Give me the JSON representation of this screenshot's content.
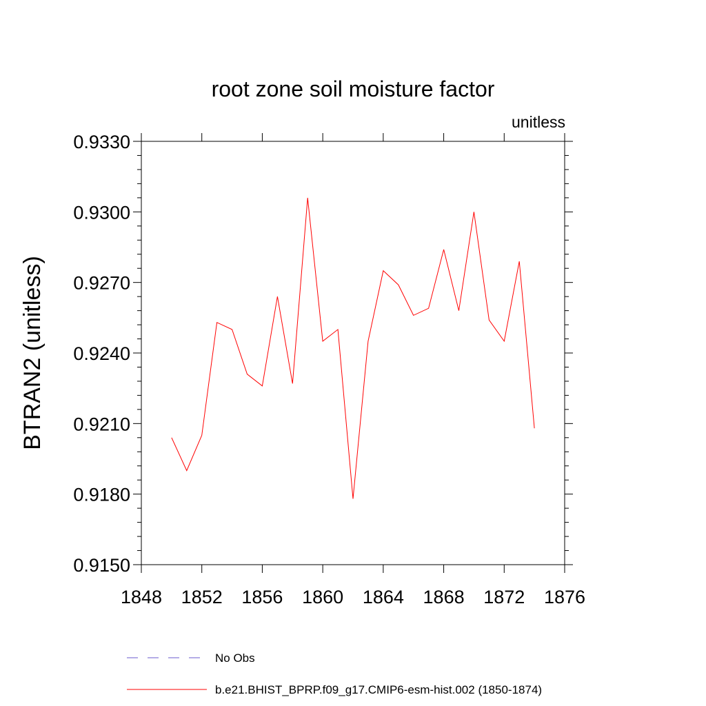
{
  "chart_data": {
    "type": "line",
    "title": "root zone soil moisture factor",
    "units_label": "unitless",
    "ylabel": "BTRAN2  (unitless)",
    "xlabel": "",
    "xlim": [
      1848,
      1876
    ],
    "ylim": [
      0.915,
      0.933
    ],
    "xticks": [
      1848,
      1852,
      1856,
      1860,
      1864,
      1868,
      1872,
      1876
    ],
    "xtick_labels": [
      "1848",
      "1852",
      "1856",
      "1860",
      "1864",
      "1868",
      "1872",
      "1876"
    ],
    "yticks": [
      0.915,
      0.918,
      0.921,
      0.924,
      0.927,
      0.93,
      0.933
    ],
    "ytick_labels": [
      "0.9150",
      "0.9180",
      "0.9210",
      "0.9240",
      "0.9270",
      "0.9300",
      "0.9330"
    ],
    "grid": false,
    "legend_position": "bottom",
    "series": [
      {
        "name": "b.e21.BHIST_BPRP.f09_g17.CMIP6-esm-hist.002 (1850-1874)",
        "color": "#ff0000",
        "style": "solid",
        "x": [
          1850,
          1851,
          1852,
          1853,
          1854,
          1855,
          1856,
          1857,
          1858,
          1859,
          1860,
          1861,
          1862,
          1863,
          1864,
          1865,
          1866,
          1867,
          1868,
          1869,
          1870,
          1871,
          1872,
          1873,
          1874
        ],
        "y": [
          0.9204,
          0.919,
          0.9205,
          0.9253,
          0.925,
          0.9231,
          0.9226,
          0.9264,
          0.9227,
          0.9306,
          0.9245,
          0.925,
          0.9178,
          0.9245,
          0.9275,
          0.9269,
          0.9256,
          0.9259,
          0.9284,
          0.9258,
          0.93,
          0.9254,
          0.9245,
          0.9279,
          0.9208
        ]
      }
    ],
    "legend": [
      {
        "label": "No Obs",
        "color": "#6a5acd",
        "style": "dashed"
      },
      {
        "label": "b.e21.BHIST_BPRP.f09_g17.CMIP6-esm-hist.002 (1850-1874)",
        "color": "#ff0000",
        "style": "solid"
      }
    ]
  }
}
